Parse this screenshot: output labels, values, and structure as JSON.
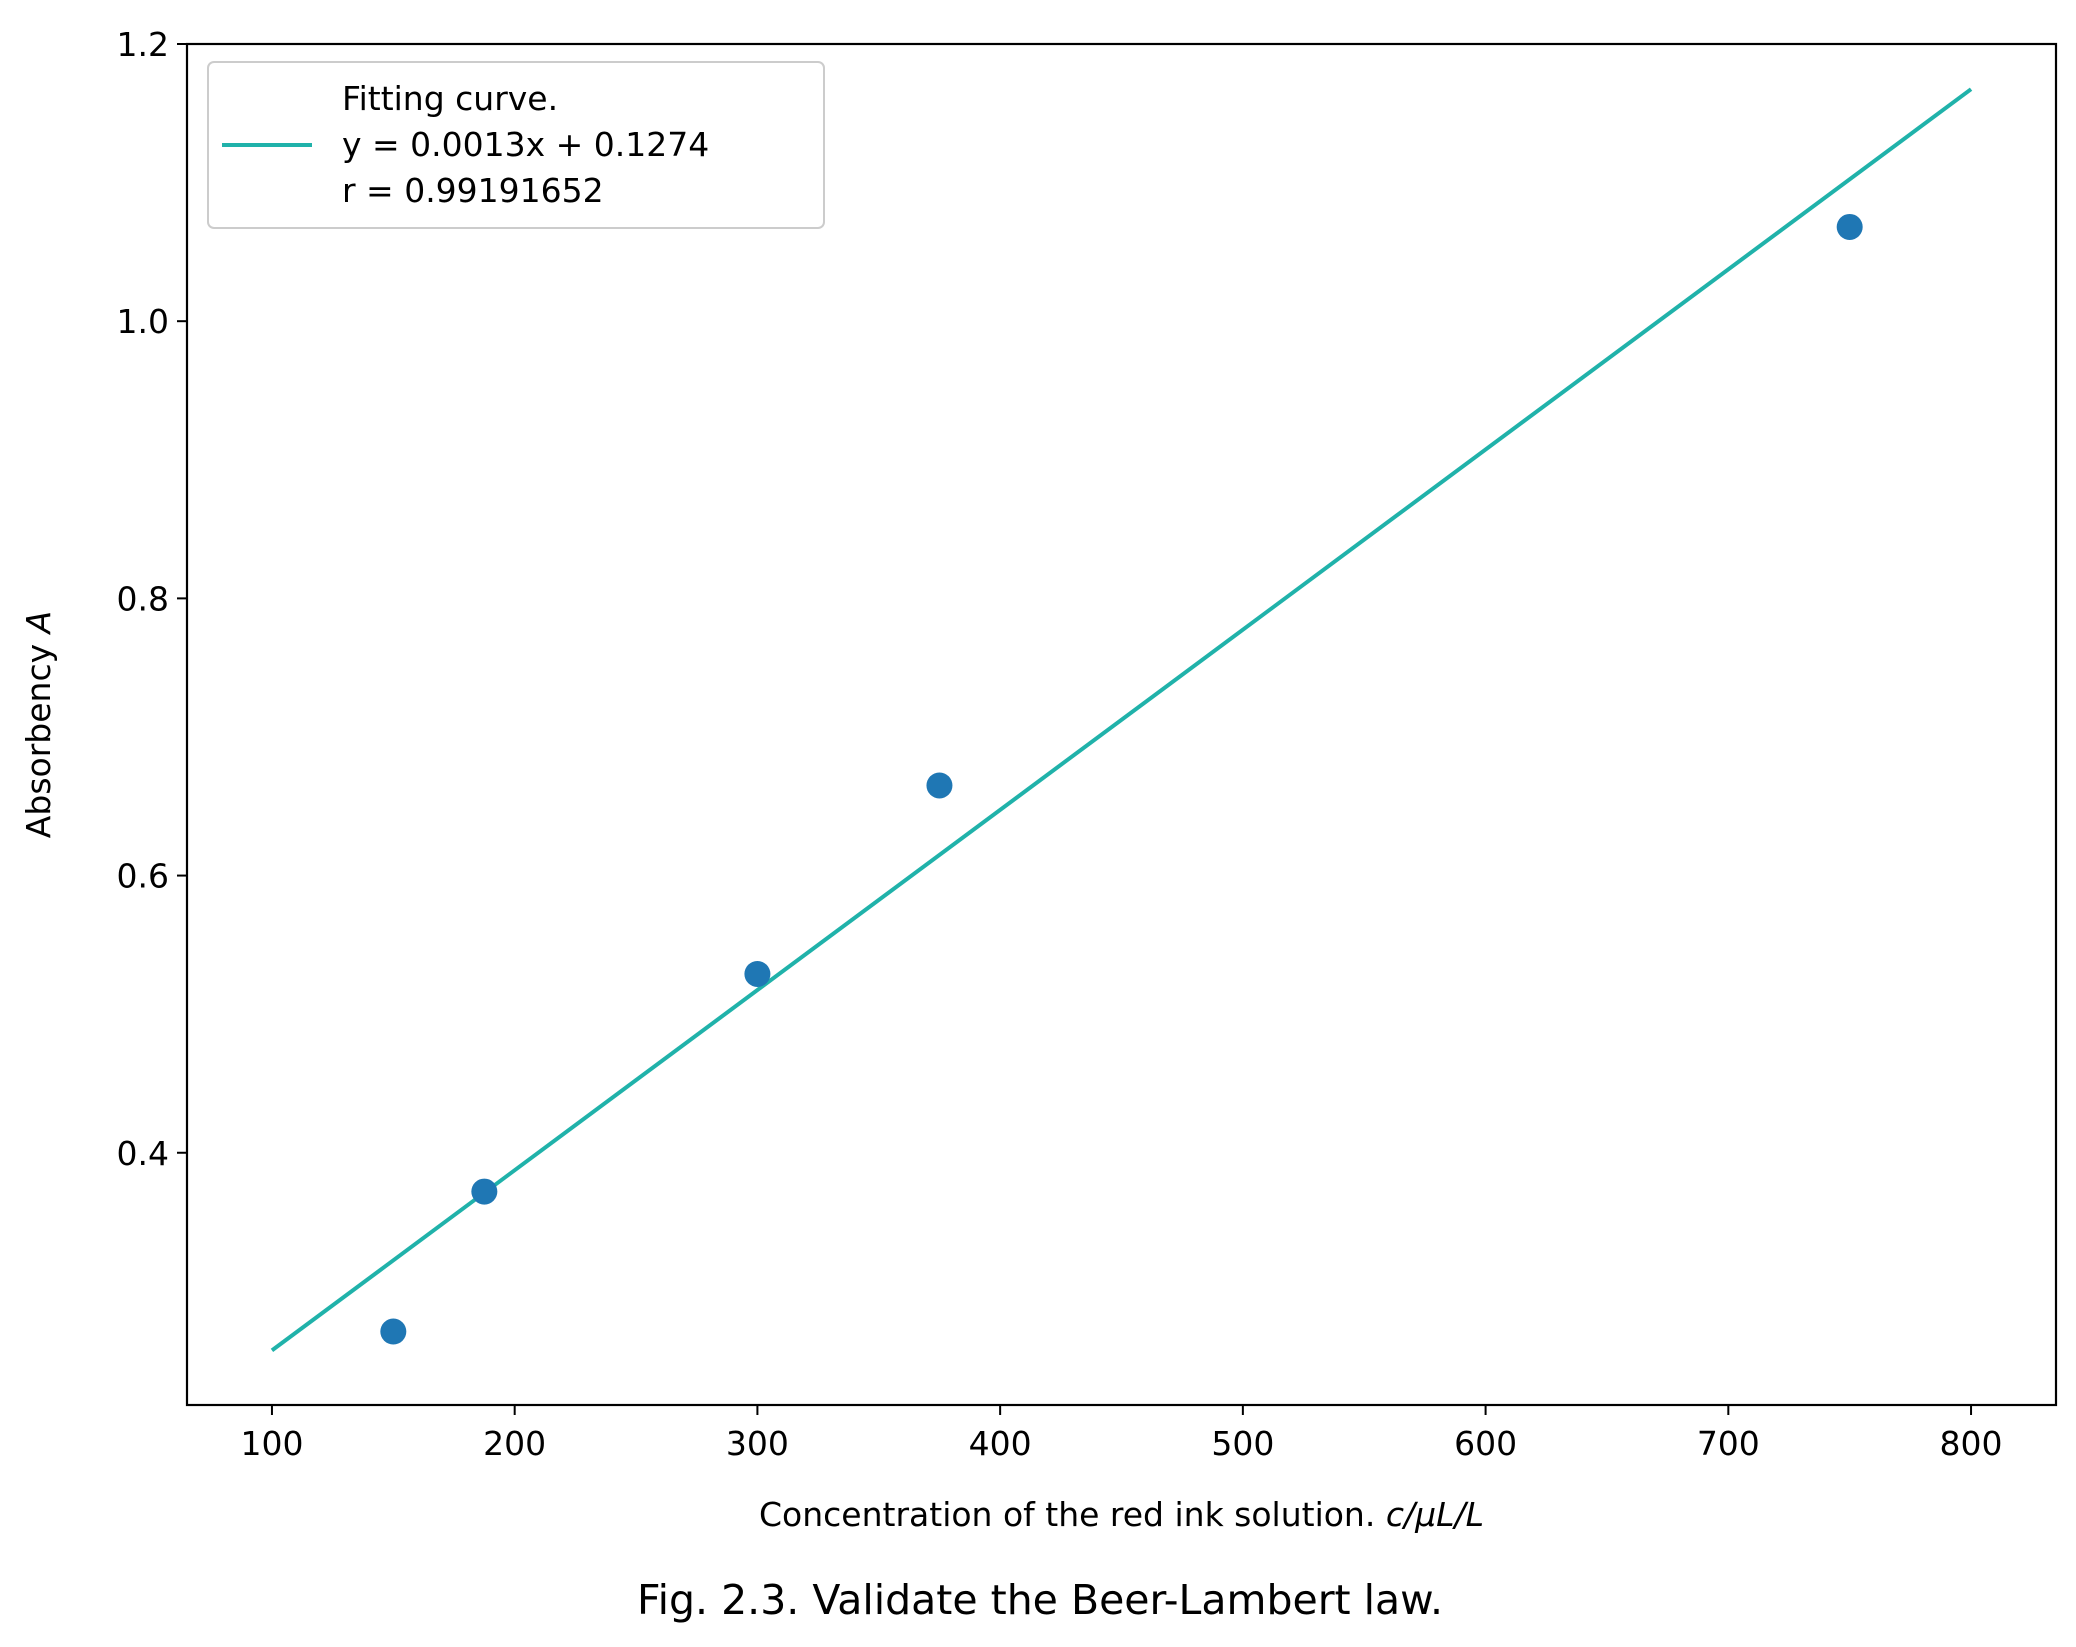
{
  "chart_data": {
    "type": "scatter",
    "caption": "Fig. 2.3. Validate the Beer-Lambert law.",
    "xlabel_prefix": "Concentration of the red ink solution. ",
    "xlabel_math": "c/μL/L",
    "ylabel_prefix": "Absorbency ",
    "ylabel_math": "A",
    "xlim": [
      65,
      835
    ],
    "ylim": [
      0.218,
      1.2
    ],
    "xticks": [
      100,
      200,
      300,
      400,
      500,
      600,
      700,
      800
    ],
    "xtick_labels": [
      "100",
      "200",
      "300",
      "400",
      "500",
      "600",
      "700",
      "800"
    ],
    "yticks": [
      0.4,
      0.6,
      0.8,
      1.0,
      1.2
    ],
    "ytick_labels": [
      "0.4",
      "0.6",
      "0.8",
      "1.0",
      "1.2"
    ],
    "grid": false,
    "legend_position": "top-left",
    "series": [
      {
        "kind": "scatter",
        "color": "#1f77b4",
        "x": [
          150,
          187.5,
          300,
          375,
          750
        ],
        "y": [
          0.271,
          0.372,
          0.529,
          0.665,
          1.068
        ]
      },
      {
        "kind": "line",
        "color": "#20b2aa",
        "name_lines": [
          "Fitting curve.",
          "y = 0.0013x + 0.1274",
          "r = 0.99191652"
        ],
        "x": [
          100,
          800
        ],
        "y": [
          0.2574,
          1.1674
        ]
      }
    ]
  }
}
